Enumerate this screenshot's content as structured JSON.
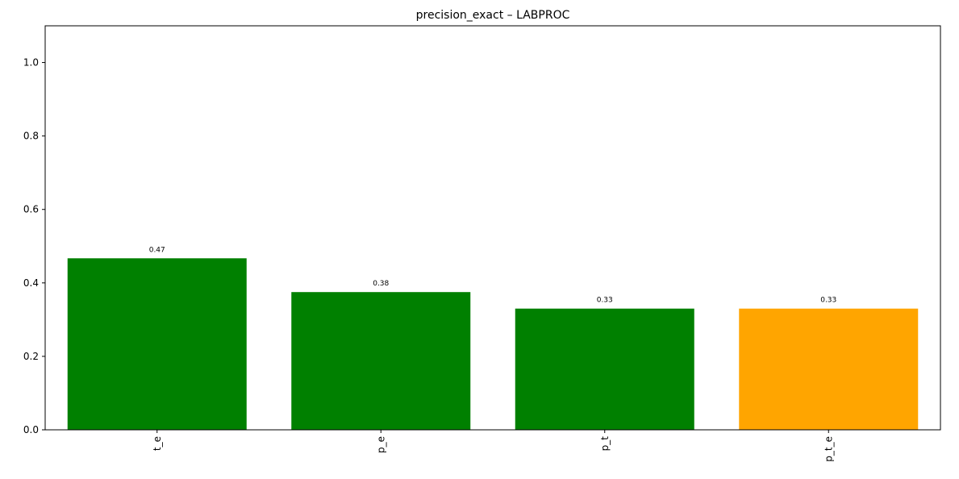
{
  "chart_data": {
    "type": "bar",
    "title": "precision_exact – LABPROC",
    "xlabel": "",
    "ylabel": "",
    "categories": [
      "t_e",
      "p_e",
      "p_t",
      "p_t_e"
    ],
    "values": [
      0.467,
      0.375,
      0.33,
      0.33
    ],
    "value_labels": [
      "0.47",
      "0.38",
      "0.33",
      "0.33"
    ],
    "bar_colors": [
      "#008000",
      "#008000",
      "#008000",
      "#ffa500"
    ],
    "ylim": [
      0,
      1.1
    ],
    "yticks": [
      0.0,
      0.2,
      0.4,
      0.6,
      0.8,
      1.0
    ],
    "ytick_labels": [
      "0.0",
      "0.2",
      "0.4",
      "0.6",
      "0.8",
      "1.0"
    ],
    "grid": false,
    "legend": "none"
  }
}
